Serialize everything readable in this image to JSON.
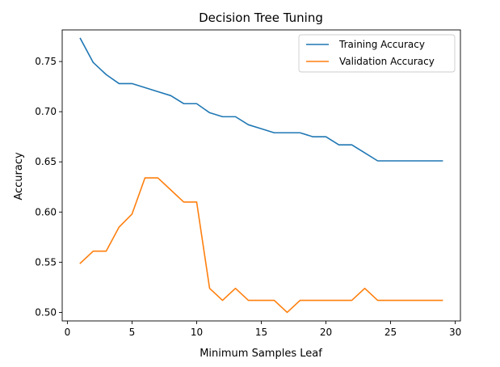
{
  "chart_data": {
    "type": "line",
    "title": "Decision Tree Tuning",
    "xlabel": "Minimum Samples Leaf",
    "ylabel": "Accuracy",
    "xlim": [
      -0.4,
      30.4
    ],
    "ylim": [
      0.4915,
      0.7815
    ],
    "xticks": [
      0,
      5,
      10,
      15,
      20,
      25,
      30
    ],
    "xtick_labels": [
      "0",
      "5",
      "10",
      "15",
      "20",
      "25",
      "30"
    ],
    "yticks": [
      0.5,
      0.55,
      0.6,
      0.65,
      0.7,
      0.75
    ],
    "ytick_labels": [
      "0.50",
      "0.55",
      "0.60",
      "0.65",
      "0.70",
      "0.75"
    ],
    "grid": false,
    "legend_position": "top-right",
    "x": [
      1,
      2,
      3,
      4,
      5,
      6,
      7,
      8,
      9,
      10,
      11,
      12,
      13,
      14,
      15,
      16,
      17,
      18,
      19,
      20,
      21,
      22,
      23,
      24,
      25,
      26,
      27,
      28,
      29
    ],
    "series": [
      {
        "name": "Training Accuracy",
        "color": "#1f77b4",
        "values": [
          0.773,
          0.749,
          0.737,
          0.728,
          0.728,
          0.724,
          0.72,
          0.716,
          0.708,
          0.708,
          0.699,
          0.695,
          0.695,
          0.687,
          0.683,
          0.679,
          0.679,
          0.679,
          0.675,
          0.675,
          0.667,
          0.667,
          0.659,
          0.651,
          0.651,
          0.651,
          0.651,
          0.651,
          0.651
        ]
      },
      {
        "name": "Validation Accuracy",
        "color": "#ff7f0e",
        "values": [
          0.549,
          0.561,
          0.561,
          0.585,
          0.598,
          0.634,
          0.634,
          0.622,
          0.61,
          0.61,
          0.524,
          0.512,
          0.524,
          0.512,
          0.512,
          0.512,
          0.5,
          0.512,
          0.512,
          0.512,
          0.512,
          0.512,
          0.524,
          0.512,
          0.512,
          0.512,
          0.512,
          0.512,
          0.512
        ]
      }
    ]
  }
}
